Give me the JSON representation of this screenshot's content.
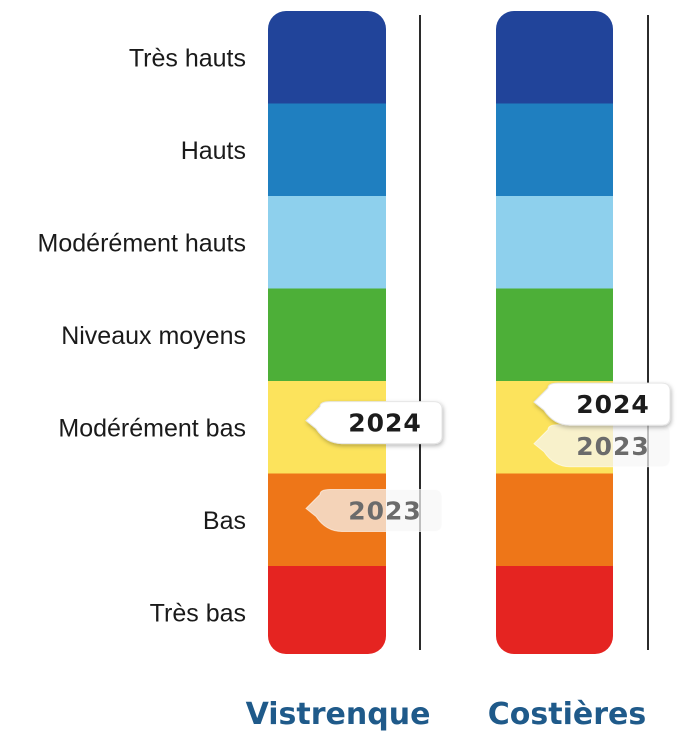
{
  "chart_data": {
    "type": "table",
    "levels": [
      {
        "label": "Très hauts",
        "color": "#21449a"
      },
      {
        "label": "Hauts",
        "color": "#1f7fc0"
      },
      {
        "label": "Modérément hauts",
        "color": "#8ed0ed"
      },
      {
        "label": "Niveaux moyens",
        "color": "#4daf38"
      },
      {
        "label": "Modérément bas",
        "color": "#fce35c"
      },
      {
        "label": "Bas",
        "color": "#ee7618"
      },
      {
        "label": "Très bas",
        "color": "#e52421"
      }
    ],
    "columns": [
      {
        "name": "Vistrenque",
        "markers": [
          {
            "year": "2024",
            "level_index": 4.45
          },
          {
            "year": "2023",
            "level_index": 5.4
          }
        ]
      },
      {
        "name": "Costières",
        "markers": [
          {
            "year": "2024",
            "level_index": 4.25
          },
          {
            "year": "2023",
            "level_index": 4.7
          }
        ]
      }
    ]
  }
}
